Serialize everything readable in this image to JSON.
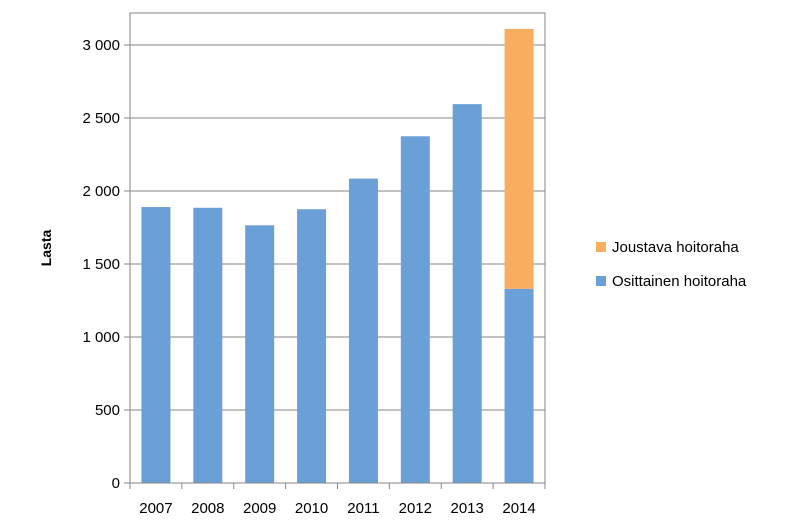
{
  "chart_data": {
    "type": "bar",
    "stacked": true,
    "categories": [
      "2007",
      "2008",
      "2009",
      "2010",
      "2011",
      "2012",
      "2013",
      "2014"
    ],
    "series": [
      {
        "name": "Osittainen hoitoraha",
        "color": "#6A9FD8",
        "values": [
          1890,
          1885,
          1765,
          1875,
          2085,
          2375,
          2595,
          1330
        ]
      },
      {
        "name": "Joustava hoitoraha",
        "color": "#F9AE5F",
        "values": [
          0,
          0,
          0,
          0,
          0,
          0,
          0,
          1780
        ]
      }
    ],
    "title": "",
    "xlabel": "",
    "ylabel": "Lasta",
    "ylim": [
      0,
      3000
    ],
    "yticks": [
      0,
      500,
      1000,
      1500,
      2000,
      2500,
      3000
    ],
    "ytick_labels": [
      "0",
      "500",
      "1 000",
      "1 500",
      "2 000",
      "2 500",
      "3 000"
    ],
    "grid": true,
    "legend_position": "right",
    "legend_order": [
      "Joustava hoitoraha",
      "Osittainen hoitoraha"
    ]
  }
}
